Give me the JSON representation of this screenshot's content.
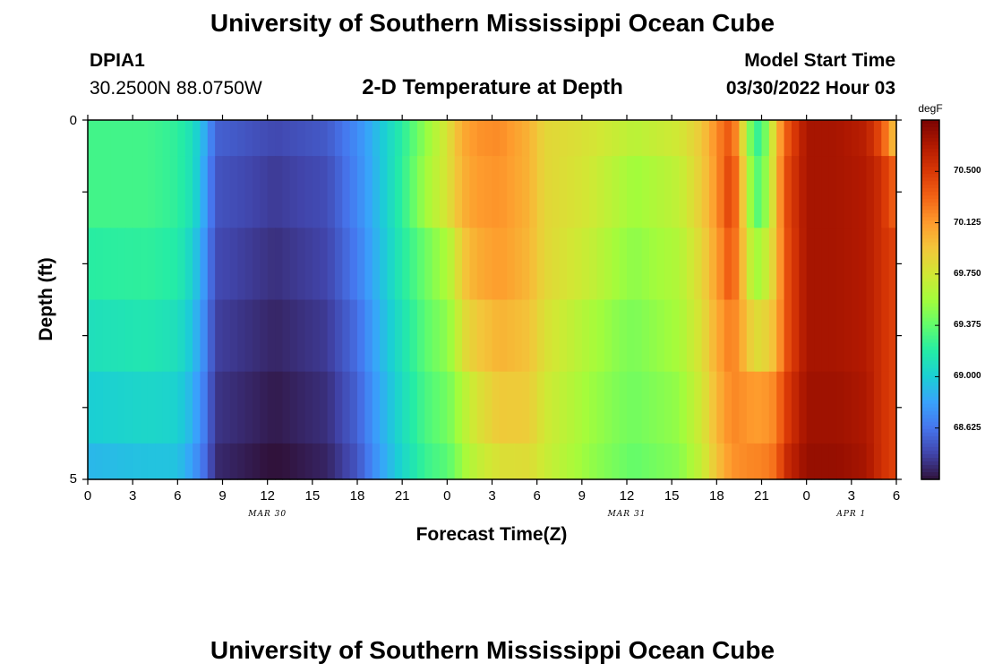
{
  "header": {
    "title": "University of Southern Mississippi Ocean Cube",
    "station_id": "DPIA1",
    "location": "30.2500N  88.0750W",
    "subtitle": "2-D Temperature at Depth",
    "model_start_label": "Model Start Time",
    "model_start_value": "03/30/2022 Hour 03"
  },
  "footer": {
    "title": "University of Southern Mississippi Ocean Cube"
  },
  "chart_data": {
    "type": "heatmap",
    "xlabel": "Forecast Time(Z)",
    "ylabel": "Depth (ft)",
    "x_tick_labels": [
      "0",
      "3",
      "6",
      "9",
      "12",
      "15",
      "18",
      "21",
      "0",
      "3",
      "6",
      "9",
      "12",
      "15",
      "18",
      "21",
      "0",
      "3",
      "6"
    ],
    "x_date_labels": [
      "MAR 30",
      "MAR 31",
      "APR 1"
    ],
    "y_tick_labels": [
      "0",
      "5"
    ],
    "ylim": [
      0,
      5
    ],
    "x_hours": [
      0,
      54
    ],
    "colorbar": {
      "unit": "degF",
      "tick_labels": [
        "70.500",
        "70.125",
        "69.750",
        "69.375",
        "69.000",
        "68.625"
      ],
      "tick_values": [
        70.5,
        70.125,
        69.75,
        69.375,
        69.0,
        68.625
      ],
      "range": [
        68.25,
        70.875
      ],
      "colors": [
        "#30123b",
        "#4145ab",
        "#4675ed",
        "#39a2fc",
        "#1bcfd4",
        "#24eca6",
        "#61fc6c",
        "#a4fc3b",
        "#d1e834",
        "#f3c63a",
        "#fe9b2d",
        "#f36315",
        "#d93806",
        "#b11901",
        "#7a0402"
      ]
    },
    "depth_layers_ft": [
      0,
      0.5,
      1.5,
      2.5,
      3.5,
      4.5
    ],
    "time_keys_hours": [
      0,
      4,
      6,
      7,
      8,
      8.5,
      12.5,
      16,
      18,
      19.5,
      21,
      22.5,
      24,
      24.5,
      25,
      26,
      27.5,
      29.5,
      30.5,
      33.5,
      35.5,
      36.5,
      39.5,
      41,
      42,
      43,
      44.5,
      45,
      46,
      46.5,
      48,
      50,
      52,
      53,
      54
    ],
    "temperature_rows_degF": [
      [
        69.28,
        69.28,
        69.22,
        69.1,
        68.8,
        68.55,
        68.45,
        68.52,
        68.72,
        68.95,
        69.2,
        69.5,
        69.78,
        69.92,
        70.05,
        70.15,
        70.18,
        70.02,
        69.85,
        69.78,
        69.7,
        69.65,
        69.75,
        69.92,
        70.18,
        70.4,
        69.25,
        69.25,
        69.95,
        70.3,
        70.72,
        70.72,
        70.65,
        70.4,
        69.9
      ],
      [
        69.28,
        69.28,
        69.22,
        69.1,
        68.75,
        68.5,
        68.4,
        68.47,
        68.7,
        68.94,
        69.22,
        69.55,
        69.78,
        69.9,
        70.02,
        70.12,
        70.15,
        70.02,
        69.85,
        69.75,
        69.62,
        69.55,
        69.68,
        69.9,
        70.15,
        70.5,
        69.35,
        69.35,
        69.95,
        70.38,
        70.72,
        70.72,
        70.68,
        70.55,
        70.3
      ],
      [
        69.2,
        69.22,
        69.18,
        69.02,
        68.7,
        68.46,
        68.36,
        68.44,
        68.66,
        68.92,
        69.18,
        69.4,
        69.6,
        69.72,
        69.92,
        70.05,
        70.12,
        70.0,
        69.85,
        69.7,
        69.55,
        69.5,
        69.62,
        69.85,
        70.1,
        70.4,
        69.55,
        69.6,
        69.95,
        70.35,
        70.72,
        70.72,
        70.68,
        70.55,
        70.45
      ],
      [
        69.1,
        69.15,
        69.1,
        68.95,
        68.65,
        68.42,
        68.32,
        68.4,
        68.6,
        68.88,
        69.12,
        69.35,
        69.5,
        69.6,
        69.8,
        69.92,
        70.02,
        69.95,
        69.8,
        69.6,
        69.48,
        69.45,
        69.58,
        69.8,
        70.05,
        70.25,
        69.82,
        69.82,
        70.0,
        70.35,
        70.72,
        70.72,
        70.68,
        70.55,
        70.45
      ],
      [
        69.0,
        69.05,
        69.02,
        68.88,
        68.6,
        68.38,
        68.28,
        68.36,
        68.55,
        68.84,
        69.08,
        69.3,
        69.42,
        69.5,
        69.62,
        69.78,
        69.92,
        69.9,
        69.75,
        69.55,
        69.45,
        69.42,
        69.52,
        69.75,
        70.0,
        70.2,
        70.12,
        70.12,
        70.2,
        70.45,
        70.75,
        70.75,
        70.7,
        70.55,
        70.45
      ],
      [
        68.9,
        68.95,
        68.95,
        68.8,
        68.55,
        68.34,
        68.24,
        68.32,
        68.5,
        68.8,
        69.04,
        69.25,
        69.35,
        69.42,
        69.55,
        69.68,
        69.8,
        69.82,
        69.72,
        69.52,
        69.42,
        69.38,
        69.48,
        69.7,
        69.95,
        70.15,
        70.2,
        70.2,
        70.28,
        70.55,
        70.78,
        70.78,
        70.72,
        70.55,
        70.45
      ]
    ]
  }
}
